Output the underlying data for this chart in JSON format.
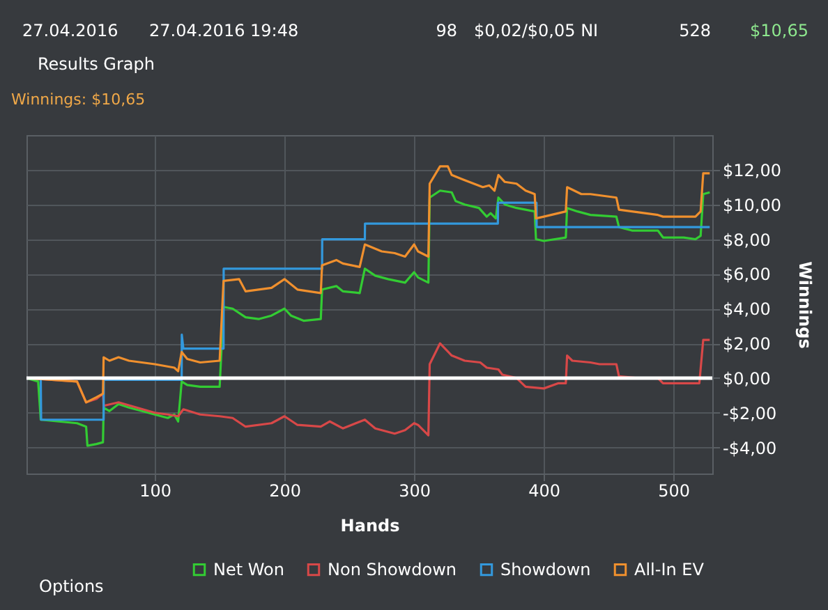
{
  "chart_data": {
    "type": "line",
    "title": "Results Graph",
    "subtitle": "Winnings: $10,65",
    "xlabel": "Hands",
    "ylabel": "Winnings",
    "annotations": [
      "27.04.2016",
      "27.04.2016 19:48",
      "98",
      "$0,02/$0,05 NI",
      "528",
      "$10,65",
      "Options"
    ],
    "xlim": [
      1,
      530
    ],
    "xticks": [
      100,
      200,
      300,
      400,
      500
    ],
    "ylim": [
      -5.5,
      14
    ],
    "yticks": [
      {
        "value": -4,
        "label": "-$4,00"
      },
      {
        "value": -2,
        "label": "-$2,00"
      },
      {
        "value": 0,
        "label": "$0,00"
      },
      {
        "value": 2,
        "label": "$2,00"
      },
      {
        "value": 4,
        "label": "$4,00"
      },
      {
        "value": 6,
        "label": "$6,00"
      },
      {
        "value": 8,
        "label": "$8,00"
      },
      {
        "value": 10,
        "label": "$10,00"
      },
      {
        "value": 12,
        "label": "$12,00"
      }
    ],
    "grid": true,
    "legend": "bottom",
    "line_style": "solid",
    "marker": "none",
    "ref_lines": [
      {
        "axis": "y",
        "value": 0,
        "color": "#ffffff"
      }
    ],
    "series": [
      {
        "name": "Net Won",
        "color": "#33cc33",
        "x": [
          1,
          10,
          12,
          40,
          47,
          48,
          55,
          60,
          60.5,
          65,
          72,
          80,
          100,
          110,
          115,
          118,
          120.7,
          125,
          135,
          150,
          153,
          160,
          170,
          180,
          190,
          200,
          205,
          215,
          228,
          229,
          240,
          245,
          258,
          262,
          270,
          280,
          293,
          300,
          303,
          311,
          312,
          320,
          329,
          332,
          339,
          350,
          356,
          359,
          363,
          365,
          370,
          379,
          386,
          393,
          394,
          400,
          417,
          418,
          426,
          436,
          456,
          458,
          468,
          488,
          492,
          508,
          517,
          521,
          523,
          528
        ],
        "values": [
          0,
          -0.2,
          -2.4,
          -2.6,
          -2.8,
          -3.9,
          -3.8,
          -3.7,
          -1.7,
          -1.9,
          -1.5,
          -1.7,
          -2.1,
          -2.3,
          -2.1,
          -2.5,
          -0.2,
          -0.4,
          -0.5,
          -0.5,
          4.1,
          4.0,
          3.5,
          3.4,
          3.6,
          4.0,
          3.6,
          3.3,
          3.4,
          5.1,
          5.3,
          5.0,
          4.9,
          6.3,
          5.9,
          5.7,
          5.5,
          6.1,
          5.8,
          5.5,
          10.4,
          10.8,
          10.7,
          10.2,
          10.0,
          9.8,
          9.3,
          9.5,
          9.2,
          10.4,
          10.0,
          9.8,
          9.7,
          9.6,
          8.0,
          7.9,
          8.1,
          9.8,
          9.6,
          9.4,
          9.3,
          8.7,
          8.5,
          8.5,
          8.1,
          8.1,
          8.0,
          8.2,
          10.6,
          10.7
        ]
      },
      {
        "name": "Non Showdown",
        "color": "#d84848",
        "x": [
          1,
          40,
          47,
          55,
          60,
          60.5,
          72,
          100,
          110,
          118,
          122,
          135,
          150,
          160,
          170,
          190,
          200,
          210,
          228,
          235,
          245,
          262,
          270,
          285,
          293,
          300,
          303,
          311,
          312,
          320,
          329,
          339,
          351,
          356,
          365,
          368,
          379,
          386,
          400,
          411,
          417,
          418,
          422,
          436,
          443,
          456,
          458,
          472,
          488,
          492,
          520,
          523,
          528
        ],
        "values": [
          0,
          -0.2,
          -1.4,
          -1.2,
          -0.9,
          -1.6,
          -1.4,
          -2.0,
          -2.1,
          -2.2,
          -1.8,
          -2.1,
          -2.2,
          -2.3,
          -2.8,
          -2.6,
          -2.2,
          -2.7,
          -2.8,
          -2.5,
          -2.9,
          -2.4,
          -2.9,
          -3.2,
          -3.0,
          -2.6,
          -2.7,
          -3.3,
          0.8,
          2.0,
          1.3,
          1.0,
          0.9,
          0.6,
          0.5,
          0.2,
          0.0,
          -0.5,
          -0.6,
          -0.3,
          -0.3,
          1.3,
          1.0,
          0.9,
          0.8,
          0.8,
          0.1,
          0.0,
          0.0,
          -0.3,
          -0.3,
          2.2,
          2.2
        ]
      },
      {
        "name": "Showdown",
        "color": "#3399dd",
        "x": [
          1,
          12,
          12.3,
          60.5,
          60.6,
          120.7,
          120.8,
          122,
          153,
          153.1,
          229,
          229.1,
          262,
          262.1,
          364.6,
          364.7,
          394.4,
          394.5,
          528
        ],
        "values": [
          0,
          0,
          -2.4,
          -2.4,
          -0.1,
          -0.1,
          2.5,
          1.7,
          1.7,
          6.3,
          6.3,
          8.0,
          8.0,
          8.9,
          8.9,
          10.1,
          10.1,
          8.7,
          8.7
        ]
      },
      {
        "name": "All-In EV",
        "color": "#f0902e",
        "x": [
          1,
          40,
          47,
          55,
          60,
          60.5,
          65,
          72,
          80,
          100,
          115,
          118,
          120.7,
          125,
          135,
          150,
          153,
          165,
          170,
          190,
          200,
          210,
          228,
          229,
          240,
          245,
          258,
          262,
          275,
          285,
          293,
          300,
          303,
          311,
          312,
          320,
          326,
          329,
          339,
          353,
          358,
          362,
          365,
          370,
          379,
          386,
          393,
          394,
          400,
          417,
          418,
          429,
          436,
          456,
          458,
          468,
          488,
          492,
          517,
          521,
          523,
          528
        ],
        "values": [
          0,
          -0.2,
          -1.4,
          -1.1,
          -0.9,
          1.2,
          1.0,
          1.2,
          1.0,
          0.8,
          0.6,
          0.4,
          1.5,
          1.1,
          0.9,
          1.0,
          5.6,
          5.7,
          5.0,
          5.2,
          5.7,
          5.1,
          4.9,
          6.5,
          6.8,
          6.6,
          6.4,
          7.7,
          7.3,
          7.2,
          7.0,
          7.7,
          7.3,
          7.0,
          11.2,
          12.2,
          12.2,
          11.7,
          11.4,
          11.0,
          11.1,
          10.8,
          11.7,
          11.3,
          11.2,
          10.8,
          10.6,
          9.2,
          9.3,
          9.6,
          11.0,
          10.6,
          10.6,
          10.4,
          9.7,
          9.6,
          9.4,
          9.3,
          9.3,
          9.6,
          11.8,
          11.8
        ]
      }
    ]
  }
}
